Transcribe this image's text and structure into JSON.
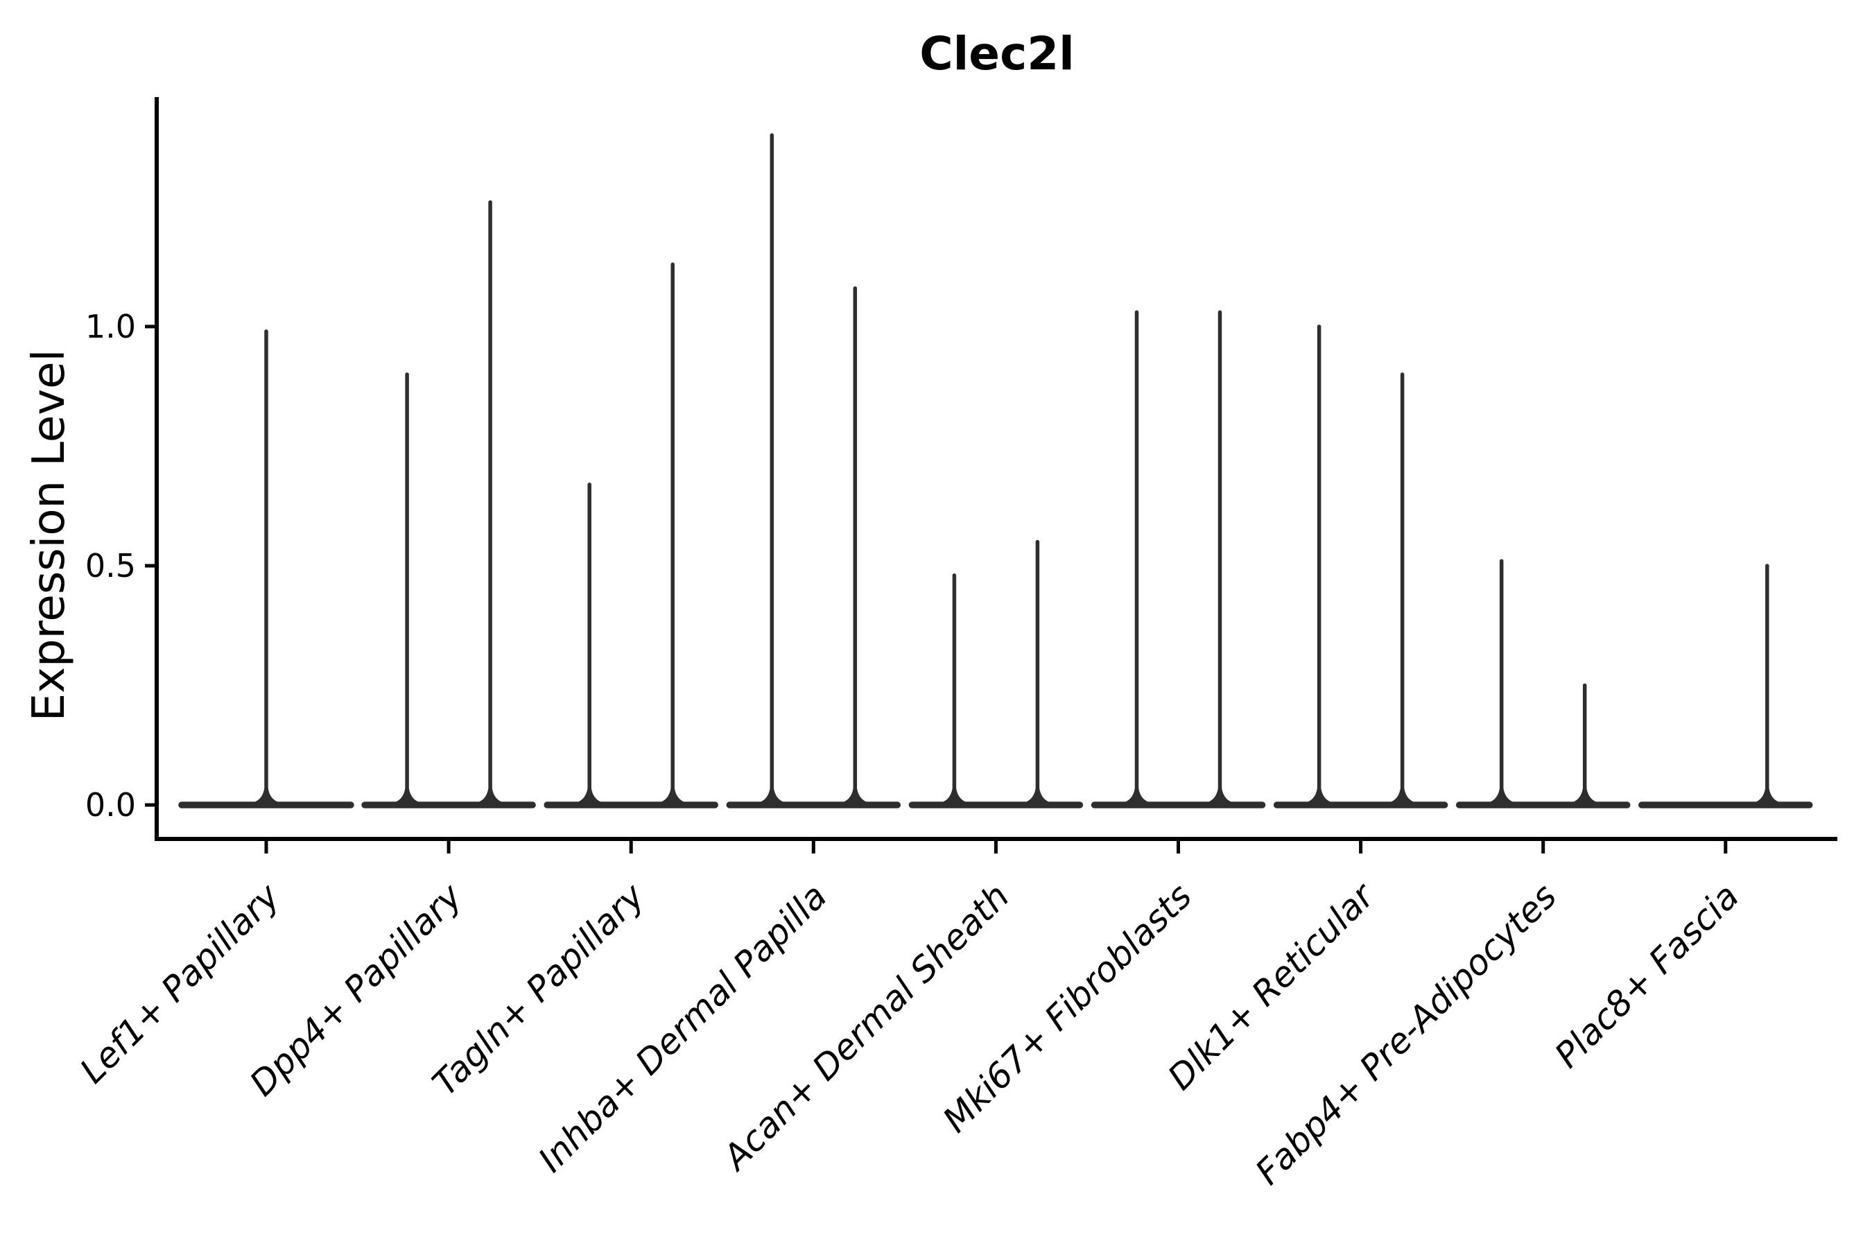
{
  "page": {
    "background": "#ffffff"
  },
  "chart_data": {
    "type": "violin",
    "title": "Clec2l",
    "ylabel": "Expression Level",
    "xlabel": "",
    "ylim": [
      -0.09,
      1.48
    ],
    "yticks": [
      0,
      0.5,
      1.0
    ],
    "ytick_labels": [
      "0.0",
      "0.5",
      "1.0"
    ],
    "grid": false,
    "legend_position": "none",
    "categories": [
      "Lef1+ Papillary",
      "Dpp4+ Papillary",
      "Tagln+ Papillary",
      "Inhba+ Dermal Papilla",
      "Acan+ Dermal Sheath",
      "Mki67+ Fibroblasts",
      "Dlk1+ Reticular",
      "Fabp4+ Pre-Adipocytes",
      "Plac8+ Fascia"
    ],
    "series": [
      {
        "category": "Lef1+ Papillary",
        "violins": [
          {
            "side": "center",
            "max_expression": 0.99
          }
        ]
      },
      {
        "category": "Dpp4+ Papillary",
        "violins": [
          {
            "side": "left",
            "max_expression": 0.9
          },
          {
            "side": "right",
            "max_expression": 1.26
          }
        ]
      },
      {
        "category": "Tagln+ Papillary",
        "violins": [
          {
            "side": "left",
            "max_expression": 0.67
          },
          {
            "side": "right",
            "max_expression": 1.13
          }
        ]
      },
      {
        "category": "Inhba+ Dermal Papilla",
        "violins": [
          {
            "side": "left",
            "max_expression": 1.4
          },
          {
            "side": "right",
            "max_expression": 1.08
          }
        ]
      },
      {
        "category": "Acan+ Dermal Sheath",
        "violins": [
          {
            "side": "left",
            "max_expression": 0.48
          },
          {
            "side": "right",
            "max_expression": 0.55
          }
        ]
      },
      {
        "category": "Mki67+ Fibroblasts",
        "violins": [
          {
            "side": "left",
            "max_expression": 1.03
          },
          {
            "side": "right",
            "max_expression": 1.03
          }
        ]
      },
      {
        "category": "Dlk1+ Reticular",
        "violins": [
          {
            "side": "left",
            "max_expression": 1.0
          },
          {
            "side": "right",
            "max_expression": 0.9
          }
        ]
      },
      {
        "category": "Fabp4+ Pre-Adipocytes",
        "violins": [
          {
            "side": "left",
            "max_expression": 0.51
          },
          {
            "side": "right",
            "max_expression": 0.25
          }
        ]
      },
      {
        "category": "Plac8+ Fascia",
        "violins": [
          {
            "side": "left",
            "max_expression": 0.0
          },
          {
            "side": "right",
            "max_expression": 0.5
          }
        ]
      }
    ],
    "colors": {
      "violin": "#2e2e2e",
      "axis": "#000000",
      "text": "#000000"
    }
  }
}
